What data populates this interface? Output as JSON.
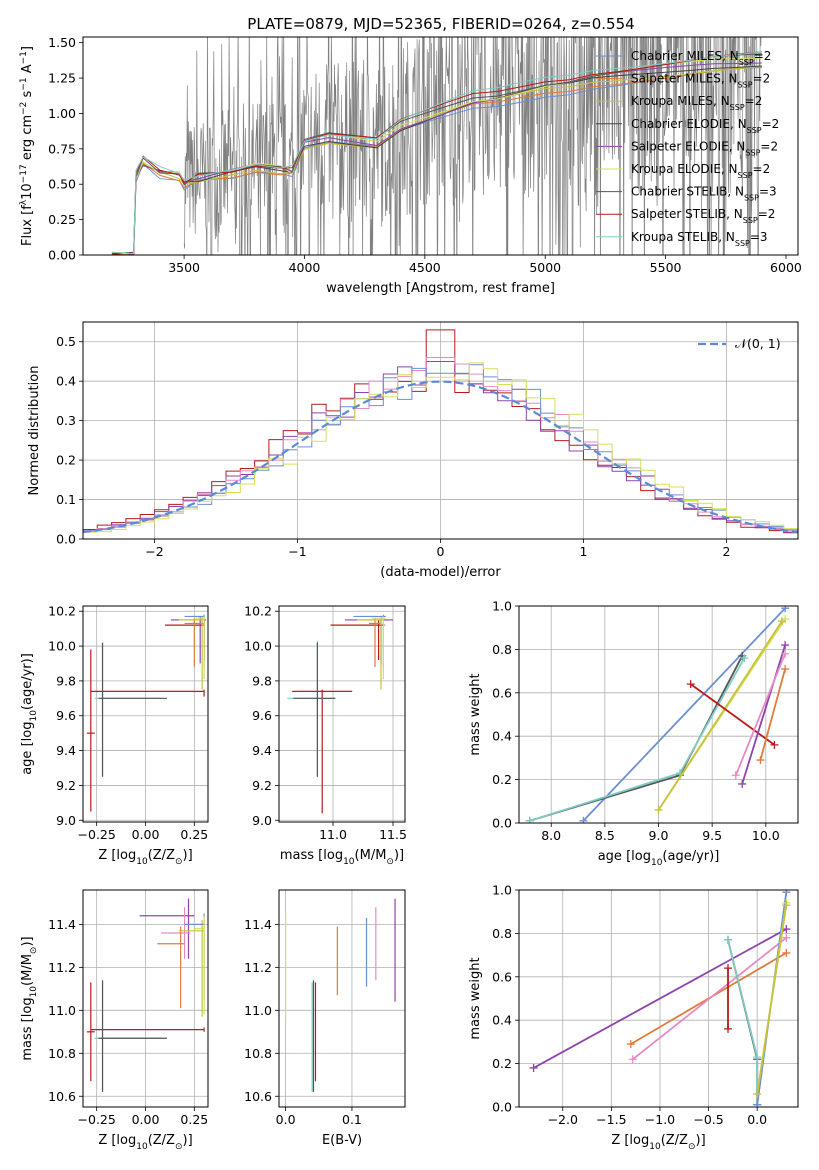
{
  "figure": {
    "title": "PLATE=0879, MJD=52365, FIBERID=0264, z=0.554"
  },
  "chart_data": [
    {
      "id": "spectrum",
      "type": "line",
      "xlabel": "wavelength [Angstrom, rest frame]",
      "ylabel_parts": [
        "Flux [f",
        "λ",
        "10",
        "−17",
        " erg cm",
        "−2",
        " s",
        "−1",
        " A",
        "−1",
        "]"
      ],
      "xlim": [
        3080,
        6050
      ],
      "ylim": [
        0,
        1.54
      ],
      "xticks": [
        3500,
        4000,
        4500,
        5000,
        5500,
        6000
      ],
      "yticks": [
        "0.00",
        "0.25",
        "0.50",
        "0.75",
        "1.00",
        "1.25",
        "1.50"
      ],
      "grid": false,
      "legend_position": "top-right",
      "legend": [
        {
          "name": "Chabrier MILES",
          "nssp": "2",
          "color": "#6a8fd6"
        },
        {
          "name": "Salpeter MILES",
          "nssp": "2",
          "color": "#e07b39"
        },
        {
          "name": "Kroupa MILES",
          "nssp": "2",
          "color": "#c7c23a"
        },
        {
          "name": "Chabrier ELODIE",
          "nssp": "2",
          "color": "#444444"
        },
        {
          "name": "Salpeter ELODIE",
          "nssp": "2",
          "color": "#8e44ad"
        },
        {
          "name": "Kroupa ELODIE",
          "nssp": "2",
          "color": "#d4e157"
        },
        {
          "name": "Chabrier STELIB",
          "nssp": "3",
          "color": "#555555"
        },
        {
          "name": "Salpeter STELIB",
          "nssp": "2",
          "color": "#b71c1c"
        },
        {
          "name": "Kroupa STELIB",
          "nssp": "3",
          "color": "#80cbc4"
        }
      ],
      "model_curve": {
        "x": [
          3200,
          3290,
          3300,
          3330,
          3400,
          3480,
          3500,
          3560,
          3700,
          3800,
          3900,
          3950,
          4000,
          4100,
          4200,
          4300,
          4400,
          4500,
          4600,
          4700,
          4800,
          4900,
          5000,
          5100,
          5200,
          5300,
          5400,
          5500,
          5600,
          5700,
          5800,
          5900
        ],
        "y": [
          0.0,
          0.0,
          0.55,
          0.65,
          0.58,
          0.56,
          0.5,
          0.54,
          0.58,
          0.62,
          0.6,
          0.58,
          0.78,
          0.82,
          0.8,
          0.78,
          0.9,
          0.96,
          1.02,
          1.08,
          1.1,
          1.14,
          1.18,
          1.2,
          1.24,
          1.26,
          1.28,
          1.3,
          1.32,
          1.34,
          1.35,
          1.36
        ]
      },
      "observed_range": [
        3500,
        5900
      ]
    },
    {
      "id": "residuals",
      "type": "histogram",
      "xlabel": "(data-model)/error",
      "ylabel": "Normed distribution",
      "xlim": [
        -2.5,
        2.5
      ],
      "ylim": [
        0,
        0.55
      ],
      "xticks": [
        "−2",
        "−1",
        "0",
        "1",
        "2"
      ],
      "yticks": [
        "0.0",
        "0.1",
        "0.2",
        "0.3",
        "0.4",
        "0.5"
      ],
      "grid": true,
      "legend_position": "top-right",
      "reference_curve": {
        "label": "𝒩(0, 1)",
        "color": "#5b8ad6",
        "mu": 0,
        "sigma": 1
      },
      "bin_width": 0.1,
      "series": [
        {
          "color": "#b71c1c",
          "peak": 0.53
        },
        {
          "color": "#8e44ad",
          "peak": 0.45
        },
        {
          "color": "#e78ac3",
          "peak": 0.46
        },
        {
          "color": "#6a8fd6",
          "peak": 0.42
        },
        {
          "color": "#d4e157",
          "peak": 0.41
        }
      ]
    },
    {
      "id": "age-vs-Z",
      "type": "errorbar",
      "xlabel_parts": [
        "Z [log",
        "10",
        "(Z/Z",
        "⊙",
        ")]"
      ],
      "ylabel_parts": [
        "age  [log",
        "10",
        "(age/yr)]"
      ],
      "xlim": [
        -0.32,
        0.32
      ],
      "ylim": [
        8.99,
        10.23
      ],
      "xticks": [
        "−0.25",
        "0.00",
        "0.25"
      ],
      "yticks": [
        "9.0",
        "9.2",
        "9.4",
        "9.6",
        "9.8",
        "10.0",
        "10.2"
      ],
      "grid": true,
      "points": [
        {
          "x": 0.3,
          "xerr": [
            0.58,
            0.0
          ],
          "y": 9.74,
          "yerr": [
            0.03,
            0.01
          ],
          "color": "#b71c1c"
        },
        {
          "x": -0.28,
          "xerr": [
            0.02,
            0.02
          ],
          "y": 9.5,
          "yerr": [
            0.45,
            0.48
          ],
          "color": "#b71c1c"
        },
        {
          "x": -0.22,
          "xerr": [
            0.04,
            0.3
          ],
          "y": 9.7,
          "yerr": [
            0.45,
            0.32
          ],
          "color": "#80cbc4"
        },
        {
          "x": -0.22,
          "xerr": [
            0.02,
            0.33
          ],
          "y": 9.7,
          "yerr": [
            0.45,
            0.32
          ],
          "color": "#555555"
        },
        {
          "x": 0.28,
          "xerr": [
            0.15,
            0.03
          ],
          "y": 10.15,
          "yerr": [
            0.25,
            0.02
          ],
          "color": "#8e44ad"
        },
        {
          "x": 0.3,
          "xerr": [
            0.2,
            0.0
          ],
          "y": 10.12,
          "yerr": [
            0.2,
            0.03
          ],
          "color": "#b71c1c"
        },
        {
          "x": 0.25,
          "xerr": [
            0.05,
            0.05
          ],
          "y": 10.13,
          "yerr": [
            0.25,
            0.03
          ],
          "color": "#e07b39"
        },
        {
          "x": 0.29,
          "xerr": [
            0.12,
            0.01
          ],
          "y": 10.15,
          "yerr": [
            0.4,
            0.02
          ],
          "color": "#c7c23a"
        },
        {
          "x": 0.3,
          "xerr": [
            0.1,
            0.0
          ],
          "y": 10.17,
          "yerr": [
            0.3,
            0.01
          ],
          "color": "#6a8fd6"
        },
        {
          "x": 0.3,
          "xerr": [
            0.05,
            0.0
          ],
          "y": 10.16,
          "yerr": [
            0.35,
            0.01
          ],
          "color": "#d4e157"
        }
      ]
    },
    {
      "id": "age-vs-mass",
      "type": "errorbar",
      "xlabel_parts": [
        "mass [log",
        "10",
        "(M/M",
        "⊙",
        ")]"
      ],
      "ylabel_parts": [],
      "xlim": [
        10.55,
        11.6
      ],
      "ylim": [
        8.99,
        10.23
      ],
      "xticks": [
        "11.0",
        "11.5"
      ],
      "yticks": [
        "9.0",
        "9.2",
        "9.4",
        "9.6",
        "9.8",
        "10.0",
        "10.2"
      ],
      "grid": true,
      "points": [
        {
          "x": 10.91,
          "xerr": [
            0.25,
            0.25
          ],
          "y": 9.74,
          "yerr": [
            0.7,
            0.01
          ],
          "color": "#b71c1c"
        },
        {
          "x": 10.87,
          "xerr": [
            0.25,
            0.15
          ],
          "y": 9.7,
          "yerr": [
            0.45,
            0.33
          ],
          "color": "#80cbc4"
        },
        {
          "x": 10.87,
          "xerr": [
            0.2,
            0.15
          ],
          "y": 9.7,
          "yerr": [
            0.45,
            0.32
          ],
          "color": "#555555"
        },
        {
          "x": 11.4,
          "xerr": [
            0.3,
            0.1
          ],
          "y": 10.15,
          "yerr": [
            0.25,
            0.01
          ],
          "color": "#8e44ad"
        },
        {
          "x": 11.38,
          "xerr": [
            0.4,
            0.05
          ],
          "y": 10.12,
          "yerr": [
            0.2,
            0.03
          ],
          "color": "#b71c1c"
        },
        {
          "x": 11.35,
          "xerr": [
            0.05,
            0.05
          ],
          "y": 10.13,
          "yerr": [
            0.25,
            0.03
          ],
          "color": "#e07b39"
        },
        {
          "x": 11.4,
          "xerr": [
            0.2,
            0.02
          ],
          "y": 10.15,
          "yerr": [
            0.4,
            0.02
          ],
          "color": "#c7c23a"
        },
        {
          "x": 11.42,
          "xerr": [
            0.25,
            0.02
          ],
          "y": 10.17,
          "yerr": [
            0.3,
            0.01
          ],
          "color": "#6a8fd6"
        },
        {
          "x": 11.42,
          "xerr": [
            0.1,
            0.02
          ],
          "y": 10.16,
          "yerr": [
            0.35,
            0.01
          ],
          "color": "#d4e157"
        }
      ]
    },
    {
      "id": "weight-vs-age",
      "type": "line",
      "xlabel_parts": [
        "age  [log",
        "10",
        "(age/yr)]"
      ],
      "ylabel": "mass weight",
      "xlim": [
        7.7,
        10.3
      ],
      "ylim": [
        0,
        1.0
      ],
      "xticks": [
        "8.0",
        "8.5",
        "9.0",
        "9.5",
        "10.0"
      ],
      "yticks": [
        "0.0",
        "0.2",
        "0.4",
        "0.6",
        "0.8",
        "1.0"
      ],
      "grid": true,
      "series": [
        {
          "color": "#6a8fd6",
          "x": [
            8.3,
            10.18
          ],
          "y": [
            0.01,
            0.99
          ]
        },
        {
          "color": "#555555",
          "x": [
            7.8,
            9.2,
            9.78
          ],
          "y": [
            0.01,
            0.22,
            0.77
          ]
        },
        {
          "color": "#80cbc4",
          "x": [
            7.8,
            9.2,
            9.8
          ],
          "y": [
            0.01,
            0.23,
            0.76
          ]
        },
        {
          "color": "#d4e157",
          "x": [
            9.0,
            10.18
          ],
          "y": [
            0.06,
            0.94
          ]
        },
        {
          "color": "#c7c23a",
          "x": [
            9.0,
            10.15
          ],
          "y": [
            0.06,
            0.93
          ]
        },
        {
          "color": "#b71c1c",
          "x": [
            9.3,
            10.08
          ],
          "y": [
            0.64,
            0.36
          ]
        },
        {
          "color": "#8e44ad",
          "x": [
            9.78,
            10.18
          ],
          "y": [
            0.18,
            0.82
          ]
        },
        {
          "color": "#e78ac3",
          "x": [
            9.72,
            10.18
          ],
          "y": [
            0.22,
            0.78
          ]
        },
        {
          "color": "#e07b39",
          "x": [
            9.95,
            10.18
          ],
          "y": [
            0.29,
            0.71
          ]
        }
      ]
    },
    {
      "id": "mass-vs-Z",
      "type": "errorbar",
      "xlabel_parts": [
        "Z [log",
        "10",
        "(Z/Z",
        "⊙",
        ")]"
      ],
      "ylabel_parts": [
        "mass [log",
        "10",
        "(M/M",
        "⊙",
        ")]"
      ],
      "xlim": [
        -0.32,
        0.32
      ],
      "ylim": [
        10.55,
        11.56
      ],
      "xticks": [
        "−0.25",
        "0.00",
        "0.25"
      ],
      "yticks": [
        "10.6",
        "10.8",
        "11.0",
        "11.2",
        "11.4"
      ],
      "grid": true,
      "points": [
        {
          "x": 0.3,
          "xerr": [
            0.58,
            0.0
          ],
          "y": 10.91,
          "yerr": [
            0.01,
            0.01
          ],
          "color": "#b71c1c"
        },
        {
          "x": -0.28,
          "xerr": [
            0.02,
            0.02
          ],
          "y": 10.9,
          "yerr": [
            0.23,
            0.23
          ],
          "color": "#b71c1c"
        },
        {
          "x": -0.22,
          "xerr": [
            0.04,
            0.3
          ],
          "y": 10.87,
          "yerr": [
            0.25,
            0.26
          ],
          "color": "#80cbc4"
        },
        {
          "x": -0.22,
          "xerr": [
            0.02,
            0.33
          ],
          "y": 10.87,
          "yerr": [
            0.25,
            0.27
          ],
          "color": "#555555"
        },
        {
          "x": 0.22,
          "xerr": [
            0.25,
            0.03
          ],
          "y": 11.44,
          "yerr": [
            0.2,
            0.08
          ],
          "color": "#8e44ad"
        },
        {
          "x": 0.2,
          "xerr": [
            0.12,
            0.03
          ],
          "y": 11.36,
          "yerr": [
            0.12,
            0.12
          ],
          "color": "#e78ac3"
        },
        {
          "x": 0.18,
          "xerr": [
            0.12,
            0.02
          ],
          "y": 11.31,
          "yerr": [
            0.3,
            0.08
          ],
          "color": "#e07b39"
        },
        {
          "x": 0.29,
          "xerr": [
            0.12,
            0.01
          ],
          "y": 11.37,
          "yerr": [
            0.4,
            0.05
          ],
          "color": "#c7c23a"
        },
        {
          "x": 0.3,
          "xerr": [
            0.1,
            0.0
          ],
          "y": 11.4,
          "yerr": [
            0.35,
            0.05
          ],
          "color": "#6a8fd6"
        },
        {
          "x": 0.3,
          "xerr": [
            0.05,
            0.0
          ],
          "y": 11.38,
          "yerr": [
            0.4,
            0.06
          ],
          "color": "#d4e157"
        }
      ]
    },
    {
      "id": "mass-vs-ebv",
      "type": "errorbar",
      "xlabel": "E(B-V)",
      "ylabel_parts": [],
      "xlim": [
        -0.01,
        0.18
      ],
      "ylim": [
        10.55,
        11.56
      ],
      "xticks": [
        "0.0",
        "0.1"
      ],
      "yticks": [
        "10.6",
        "10.8",
        "11.0",
        "11.2",
        "11.4"
      ],
      "grid": true,
      "points": [
        {
          "x": 0.0,
          "xerr": [
            0,
            0
          ],
          "y": 11.21,
          "yerr": [
            0.25,
            0.25
          ],
          "color": "#d4e157"
        },
        {
          "x": 0.04,
          "xerr": [
            0,
            0
          ],
          "y": 10.87,
          "yerr": [
            0.25,
            0.26
          ],
          "color": "#80cbc4"
        },
        {
          "x": 0.042,
          "xerr": [
            0,
            0
          ],
          "y": 10.87,
          "yerr": [
            0.25,
            0.27
          ],
          "color": "#555555"
        },
        {
          "x": 0.045,
          "xerr": [
            0,
            0
          ],
          "y": 10.9,
          "yerr": [
            0.23,
            0.23
          ],
          "color": "#b71c1c"
        },
        {
          "x": 0.078,
          "xerr": [
            0,
            0
          ],
          "y": 11.23,
          "yerr": [
            0.16,
            0.16
          ],
          "color": "#e07b39"
        },
        {
          "x": 0.122,
          "xerr": [
            0,
            0
          ],
          "y": 11.27,
          "yerr": [
            0.16,
            0.16
          ],
          "color": "#6a8fd6"
        },
        {
          "x": 0.136,
          "xerr": [
            0,
            0
          ],
          "y": 11.31,
          "yerr": [
            0.17,
            0.17
          ],
          "color": "#e78ac3"
        },
        {
          "x": 0.165,
          "xerr": [
            0,
            0
          ],
          "y": 11.28,
          "yerr": [
            0.24,
            0.24
          ],
          "color": "#8e44ad"
        }
      ]
    },
    {
      "id": "weight-vs-Z",
      "type": "line",
      "xlabel_parts": [
        "Z [log",
        "10",
        "(Z/Z",
        "⊙",
        ")]"
      ],
      "ylabel": "mass weight",
      "xlim": [
        -2.45,
        0.42
      ],
      "ylim": [
        0,
        1.0
      ],
      "xticks": [
        "−2.0",
        "−1.5",
        "−1.0",
        "−0.5",
        "0.0"
      ],
      "yticks": [
        "0.0",
        "0.2",
        "0.4",
        "0.6",
        "0.8",
        "1.0"
      ],
      "grid": true,
      "series": [
        {
          "color": "#8e44ad",
          "x": [
            -2.3,
            0.3
          ],
          "y": [
            0.18,
            0.82
          ]
        },
        {
          "color": "#e07b39",
          "x": [
            -1.3,
            0.3
          ],
          "y": [
            0.29,
            0.71
          ]
        },
        {
          "color": "#e78ac3",
          "x": [
            -1.28,
            0.3
          ],
          "y": [
            0.22,
            0.78
          ]
        },
        {
          "color": "#b71c1c",
          "x": [
            -0.3,
            -0.3
          ],
          "y": [
            0.64,
            0.36
          ]
        },
        {
          "color": "#555555",
          "x": [
            -0.3,
            0.0,
            0.0
          ],
          "y": [
            0.77,
            0.22,
            0.01
          ]
        },
        {
          "color": "#80cbc4",
          "x": [
            -0.3,
            0.0,
            0.0
          ],
          "y": [
            0.77,
            0.23,
            0.01
          ]
        },
        {
          "color": "#6a8fd6",
          "x": [
            0.0,
            0.3
          ],
          "y": [
            0.01,
            0.99
          ]
        },
        {
          "color": "#d4e157",
          "x": [
            0.0,
            0.3
          ],
          "y": [
            0.06,
            0.94
          ]
        },
        {
          "color": "#c7c23a",
          "x": [
            0.0,
            0.3
          ],
          "y": [
            0.06,
            0.93
          ]
        }
      ]
    }
  ]
}
